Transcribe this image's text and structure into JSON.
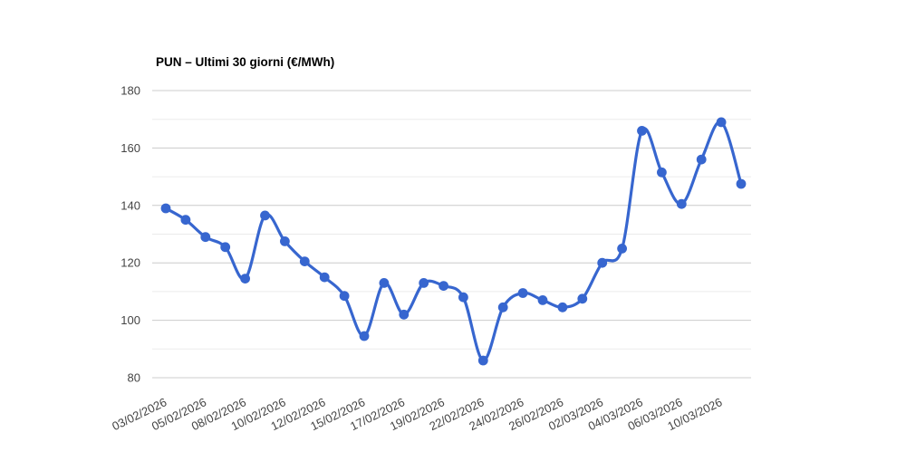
{
  "chart_data": {
    "type": "line",
    "title": "PUN – Ultimi 30 giorni (€/MWh)",
    "x_labels": [
      "03/02/2026",
      "05/02/2026",
      "08/02/2026",
      "10/02/2026",
      "12/02/2026",
      "15/02/2026",
      "17/02/2026",
      "19/02/2026",
      "22/02/2026",
      "24/02/2026",
      "26/02/2026",
      "02/03/2026",
      "04/03/2026",
      "06/03/2026",
      "10/03/2026"
    ],
    "label_every_n_points": 2,
    "values": [
      139,
      135,
      129,
      125.5,
      114.5,
      136.5,
      127.5,
      120.5,
      115,
      108.5,
      94.5,
      113,
      102,
      113,
      112,
      108,
      86,
      104.5,
      109.5,
      107,
      104.5,
      107.5,
      120,
      125,
      166,
      151.5,
      140.5,
      156,
      169,
      147.5
    ],
    "ylim": [
      80,
      180
    ],
    "y_ticks": [
      80,
      100,
      120,
      140,
      160,
      180
    ],
    "y_minor_ticks": [
      90,
      110,
      130,
      150,
      170
    ],
    "grid": true,
    "legend": "none",
    "curve": "smooth",
    "colors": {
      "series": "#3766cf",
      "grid_major": "#cccccc",
      "grid_minor": "#ebebeb",
      "axis_text": "#444444",
      "background": "#ffffff"
    }
  }
}
